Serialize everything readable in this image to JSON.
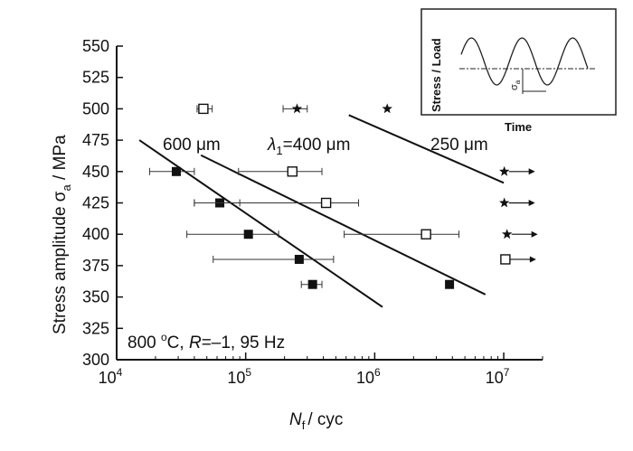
{
  "chart_data": {
    "type": "scatter",
    "x_scale": "log",
    "xlim": [
      10000,
      20000000
    ],
    "ylim": [
      300,
      550
    ],
    "x_ticks": [
      "10",
      "10",
      "10",
      "10"
    ],
    "x_tick_exps": [
      "4",
      "5",
      "6",
      "7"
    ],
    "y_ticks": [
      "300",
      "325",
      "350",
      "375",
      "400",
      "425",
      "450",
      "475",
      "500",
      "525",
      "550"
    ],
    "ylabel_main": "Stress amplitude σ",
    "ylabel_sub": "a",
    "ylabel_unit": " / MPa",
    "xlabel_main": "N",
    "xlabel_sub": "f",
    "xlabel_unit": "/ cyc",
    "conditions": {
      "temp": "800 ",
      "deg": "o",
      "c_unit": "C, ",
      "r": "R",
      "rest": "=–1, 95 Hz"
    },
    "annotations": {
      "a600": "600 μm",
      "lambda_main": "λ",
      "lambda_sub": "1",
      "a400": "=400 μm",
      "a250": "250 μm"
    },
    "series": [
      {
        "marker": "filled-square",
        "points": [
          {
            "x": 29000,
            "y": 450,
            "xmin": 18000,
            "xmax": 40000
          },
          {
            "x": 63000,
            "y": 425,
            "xmin": 40000,
            "xmax": 90000
          },
          {
            "x": 105000,
            "y": 400,
            "xmin": 35000,
            "xmax": 180000
          },
          {
            "x": 260000,
            "y": 380,
            "xmin": 56000,
            "xmax": 480000
          },
          {
            "x": 330000,
            "y": 360,
            "xmin": 270000,
            "xmax": 390000
          },
          {
            "x": 3800000,
            "y": 360
          }
        ],
        "fit": {
          "x1": 15000,
          "y1": 475,
          "x2": 1150000,
          "y2": 342
        }
      },
      {
        "marker": "open-square",
        "points": [
          {
            "x": 47000,
            "y": 500,
            "xmin": 42000,
            "xmax": 55000
          },
          {
            "x": 230000,
            "y": 450,
            "xmin": 88000,
            "xmax": 390000
          },
          {
            "x": 420000,
            "y": 425,
            "xmin": 40000,
            "xmax": 750000
          },
          {
            "x": 2500000,
            "y": 400,
            "xmin": 580000,
            "xmax": 4500000
          },
          {
            "x": 10300000,
            "y": 380,
            "runout": true
          }
        ],
        "fit": {
          "x1": 45000,
          "y1": 463,
          "x2": 7200000,
          "y2": 352
        }
      },
      {
        "marker": "star",
        "points": [
          {
            "x": 250000,
            "y": 500,
            "xmin": 195000,
            "xmax": 300000
          },
          {
            "x": 1250000,
            "y": 500
          },
          {
            "x": 10100000,
            "y": 450,
            "runout": true
          },
          {
            "x": 10100000,
            "y": 425,
            "runout": true
          },
          {
            "x": 10600000,
            "y": 400,
            "runout": true
          }
        ],
        "fit": {
          "x1": 630000,
          "y1": 495,
          "x2": 10000000,
          "y2": 441
        }
      }
    ],
    "inset": {
      "ylabel": "Stress / Load",
      "xlabel": "Time",
      "symbol": "σ",
      "symbol_sub": "a"
    }
  }
}
